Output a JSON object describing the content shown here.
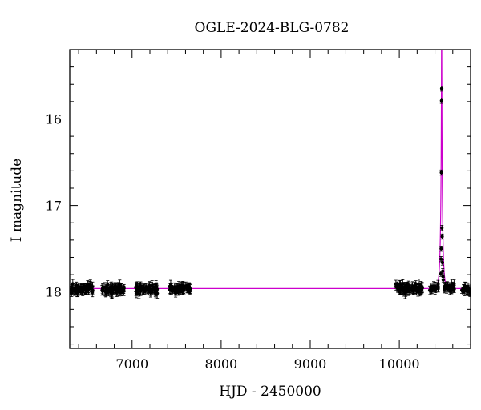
{
  "chart_data": {
    "type": "scatter",
    "title": "OGLE-2024-BLG-0782",
    "xlabel": "HJD - 2450000",
    "ylabel": "I magnitude",
    "xlim": [
      6300,
      10800
    ],
    "ylim": [
      18.65,
      15.2
    ],
    "y_inverted": true,
    "x_ticks": [
      7000,
      8000,
      9000,
      10000
    ],
    "x_tick_labels": [
      "7000",
      "8000",
      "9000",
      "10000"
    ],
    "y_ticks": [
      16,
      17,
      18
    ],
    "y_tick_labels": [
      "16",
      "17",
      "18"
    ],
    "grid": false,
    "baseline_mag": 17.96,
    "model": {
      "name": "",
      "color": "#cc00cc",
      "t0": 10475,
      "tE": 22,
      "u0": 0.055
    },
    "series": [
      {
        "name": "",
        "color": "#000000",
        "segments": [
          {
            "x_start": 6310,
            "x_end": 6560,
            "n": 70,
            "mean": 17.96,
            "scatter": 0.035,
            "err": 0.045
          },
          {
            "x_start": 6660,
            "x_end": 6910,
            "n": 60,
            "mean": 17.97,
            "scatter": 0.035,
            "err": 0.05
          },
          {
            "x_start": 7040,
            "x_end": 7290,
            "n": 55,
            "mean": 17.97,
            "scatter": 0.035,
            "err": 0.05
          },
          {
            "x_start": 7420,
            "x_end": 7660,
            "n": 55,
            "mean": 17.96,
            "scatter": 0.03,
            "err": 0.045
          },
          {
            "x_start": 9960,
            "x_end": 10260,
            "n": 70,
            "mean": 17.96,
            "scatter": 0.035,
            "err": 0.05
          },
          {
            "x_start": 10340,
            "x_end": 10440,
            "n": 20,
            "mean": 17.95,
            "scatter": 0.03,
            "err": 0.045
          },
          {
            "x_start": 10500,
            "x_end": 10620,
            "n": 25,
            "mean": 17.95,
            "scatter": 0.03,
            "err": 0.045
          },
          {
            "x_start": 10700,
            "x_end": 10800,
            "n": 18,
            "mean": 17.97,
            "scatter": 0.03,
            "err": 0.045
          }
        ],
        "event_points": [
          {
            "x": 10470,
            "y": 17.5
          },
          {
            "x": 10472,
            "y": 16.62
          },
          {
            "x": 10474,
            "y": 15.79
          },
          {
            "x": 10476,
            "y": 15.65
          },
          {
            "x": 10478,
            "y": 17.26
          },
          {
            "x": 10481,
            "y": 17.36
          },
          {
            "x": 10484,
            "y": 17.66
          },
          {
            "x": 10468,
            "y": 17.62
          },
          {
            "x": 10487,
            "y": 17.76
          },
          {
            "x": 10490,
            "y": 17.82
          },
          {
            "x": 10465,
            "y": 17.79
          },
          {
            "x": 10493,
            "y": 17.86
          }
        ]
      }
    ]
  }
}
